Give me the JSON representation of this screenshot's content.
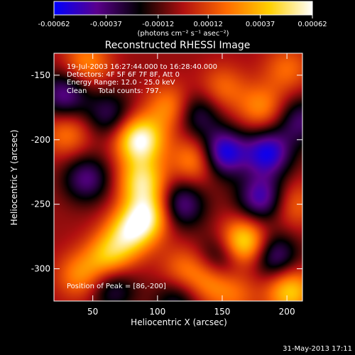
{
  "chart_data": {
    "type": "heatmap",
    "title": "Reconstructed RHESSI Image",
    "xlabel": "Heliocentric X (arcsec)",
    "ylabel": "Heliocentric Y (arcsec)",
    "xlim": [
      20,
      212
    ],
    "ylim": [
      -325,
      -133
    ],
    "x_ticks": [
      50,
      100,
      150,
      200
    ],
    "x_tick_labels": [
      "50",
      "100",
      "150",
      "200"
    ],
    "y_ticks": [
      -150,
      -200,
      -250,
      -300
    ],
    "y_tick_labels": [
      "-150",
      "-200",
      "-250",
      "-300"
    ],
    "colorbar": {
      "range": [
        -0.00062,
        0.00062
      ],
      "ticks": [
        -0.00062,
        -0.00037,
        -0.00012,
        0.00012,
        0.00037,
        0.00062
      ],
      "tick_labels": [
        "-0.00062",
        "-0.00037",
        "-0.00012",
        "0.00012",
        "0.00037",
        "0.00062"
      ],
      "units": "(photons cm⁻² s⁻¹ asec⁻²)",
      "colors": [
        "#0000ff",
        "#5a008c",
        "#000000",
        "#b01010",
        "#ff6a00",
        "#ffd000",
        "#ffffff"
      ]
    },
    "annotations": [
      "19-Jul-2003 16:27:44.000 to 16:28:40.000",
      "Detectors: 4F 5F 6F 7F 8F, Att 0",
      "Energy Range: 12.0 - 25.0 keV",
      "Clean     Total counts: 797.",
      "Position of Peak = [86,-200]"
    ],
    "peak": [
      86,
      -200
    ],
    "sources": [
      {
        "x": 86,
        "y": -200,
        "amp": 1.0
      },
      {
        "x": 88,
        "y": -232,
        "amp": 0.75
      },
      {
        "x": 92,
        "y": -258,
        "amp": 0.8
      },
      {
        "x": 78,
        "y": -272,
        "amp": 0.7
      },
      {
        "x": 62,
        "y": -290,
        "amp": 0.6
      },
      {
        "x": 166,
        "y": -280,
        "amp": 0.92
      },
      {
        "x": 202,
        "y": -317,
        "amp": 0.7
      },
      {
        "x": 130,
        "y": -215,
        "amp": 0.55
      },
      {
        "x": 110,
        "y": -175,
        "amp": 0.5
      },
      {
        "x": 45,
        "y": -140,
        "amp": 0.45
      },
      {
        "x": 180,
        "y": -175,
        "amp": 0.45
      },
      {
        "x": 150,
        "y": -160,
        "amp": 0.35
      },
      {
        "x": 40,
        "y": -305,
        "amp": 0.45
      },
      {
        "x": 140,
        "y": -310,
        "amp": 0.4
      },
      {
        "x": 205,
        "y": -250,
        "amp": 0.35
      },
      {
        "x": 120,
        "y": -300,
        "amp": 0.35
      },
      {
        "x": 30,
        "y": -195,
        "amp": 0.4
      },
      {
        "x": 200,
        "y": -145,
        "amp": 0.35
      },
      {
        "x": 160,
        "y": -320,
        "amp": 0.3
      },
      {
        "x": 150,
        "y": -210,
        "amp": -0.9
      },
      {
        "x": 185,
        "y": -210,
        "amp": -0.8
      },
      {
        "x": 28,
        "y": -165,
        "amp": -0.6
      },
      {
        "x": 45,
        "y": -230,
        "amp": -0.55
      },
      {
        "x": 118,
        "y": -250,
        "amp": -0.6
      },
      {
        "x": 130,
        "y": -180,
        "amp": -0.5
      },
      {
        "x": 180,
        "y": -245,
        "amp": -0.7
      },
      {
        "x": 115,
        "y": -325,
        "amp": -0.4
      },
      {
        "x": 190,
        "y": -290,
        "amp": -0.6
      },
      {
        "x": 62,
        "y": -180,
        "amp": -0.45
      },
      {
        "x": 150,
        "y": -290,
        "amp": -0.5
      },
      {
        "x": 65,
        "y": -315,
        "amp": -0.45
      },
      {
        "x": 210,
        "y": -185,
        "amp": -0.5
      }
    ]
  },
  "footer": {
    "date": "31-May-2013 17:11"
  }
}
